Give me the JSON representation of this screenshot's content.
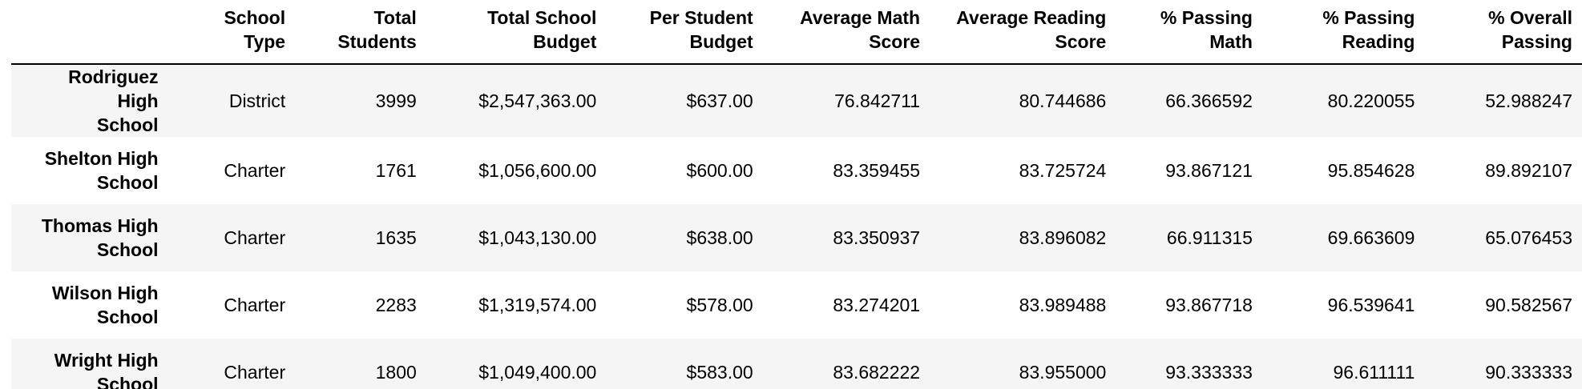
{
  "table": {
    "columns": [
      {
        "line1": "",
        "line2": ""
      },
      {
        "line1": "School",
        "line2": "Type"
      },
      {
        "line1": "Total",
        "line2": "Students"
      },
      {
        "line1": "Total School",
        "line2": "Budget"
      },
      {
        "line1": "Per Student",
        "line2": "Budget"
      },
      {
        "line1": "Average Math",
        "line2": "Score"
      },
      {
        "line1": "Average Reading",
        "line2": "Score"
      },
      {
        "line1": "% Passing",
        "line2": "Math"
      },
      {
        "line1": "% Passing",
        "line2": "Reading"
      },
      {
        "line1": "% Overall",
        "line2": "Passing"
      }
    ],
    "rows": [
      {
        "school_line1": "Rodriguez High",
        "school_line2": "School",
        "type": "District",
        "total_students": "3999",
        "total_budget": "$2,547,363.00",
        "per_student": "$637.00",
        "avg_math": "76.842711",
        "avg_reading": "80.744686",
        "pct_math": "66.366592",
        "pct_reading": "80.220055",
        "pct_overall": "52.988247"
      },
      {
        "school_line1": "Shelton High",
        "school_line2": "School",
        "type": "Charter",
        "total_students": "1761",
        "total_budget": "$1,056,600.00",
        "per_student": "$600.00",
        "avg_math": "83.359455",
        "avg_reading": "83.725724",
        "pct_math": "93.867121",
        "pct_reading": "95.854628",
        "pct_overall": "89.892107"
      },
      {
        "school_line1": "Thomas High",
        "school_line2": "School",
        "type": "Charter",
        "total_students": "1635",
        "total_budget": "$1,043,130.00",
        "per_student": "$638.00",
        "avg_math": "83.350937",
        "avg_reading": "83.896082",
        "pct_math": "66.911315",
        "pct_reading": "69.663609",
        "pct_overall": "65.076453"
      },
      {
        "school_line1": "Wilson High",
        "school_line2": "School",
        "type": "Charter",
        "total_students": "2283",
        "total_budget": "$1,319,574.00",
        "per_student": "$578.00",
        "avg_math": "83.274201",
        "avg_reading": "83.989488",
        "pct_math": "93.867718",
        "pct_reading": "96.539641",
        "pct_overall": "90.582567"
      },
      {
        "school_line1": "Wright High",
        "school_line2": "School",
        "type": "Charter",
        "total_students": "1800",
        "total_budget": "$1,049,400.00",
        "per_student": "$583.00",
        "avg_math": "83.682222",
        "avg_reading": "83.955000",
        "pct_math": "93.333333",
        "pct_reading": "96.611111",
        "pct_overall": "90.333333"
      }
    ]
  }
}
